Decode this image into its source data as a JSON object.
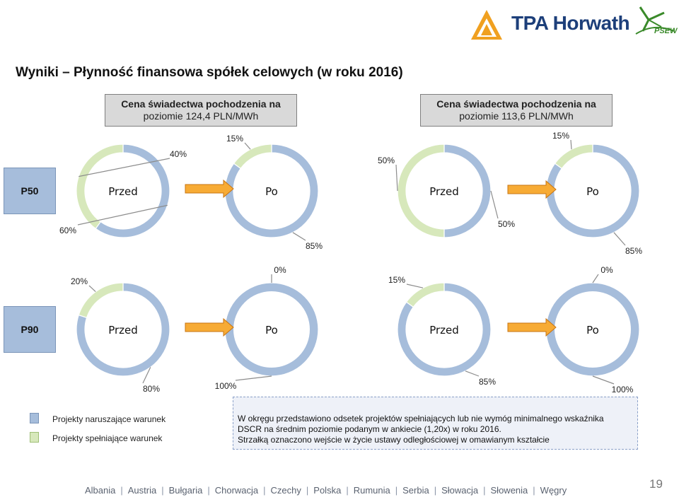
{
  "brand": {
    "name": "TPA Horwath",
    "partner": "PSEW",
    "accent": "#1d3f7a",
    "logo_orange": "#f0a020",
    "partner_green": "#3a8a2a"
  },
  "title": "Wyniki – Płynność finansowa spółek celowych (w roku 2016)",
  "scenarios": [
    {
      "line1": "Cena świadectwa pochodzenia na",
      "line2": "poziomie 124,4 PLN/MWh"
    },
    {
      "line1": "Cena świadectwa pochodzenia na",
      "line2": "poziomie 113,6 PLN/MWh"
    }
  ],
  "row_labels": [
    "P50",
    "P90"
  ],
  "colors": {
    "violating": "#a6bddb",
    "meeting": "#d7e8bb",
    "violating_border": "#7b95b8",
    "meeting_border": "#9fbf76"
  },
  "chart_data": [
    {
      "type": "pie",
      "variant": "donut",
      "label": "Przed",
      "row": "P50",
      "scenario": "124,4 PLN/MWh",
      "slices": [
        {
          "name": "Projekty spełniające warunek",
          "value": 40,
          "label": "40%"
        },
        {
          "name": "Projekty naruszające warunek",
          "value": 60,
          "label": "60%"
        }
      ]
    },
    {
      "type": "pie",
      "variant": "donut",
      "label": "Po",
      "row": "P50",
      "scenario": "124,4 PLN/MWh",
      "slices": [
        {
          "name": "Projekty spełniające warunek",
          "value": 15,
          "label": "15%"
        },
        {
          "name": "Projekty naruszające warunek",
          "value": 85,
          "label": "85%"
        }
      ]
    },
    {
      "type": "pie",
      "variant": "donut",
      "label": "Przed",
      "row": "P50",
      "scenario": "113,6 PLN/MWh",
      "slices": [
        {
          "name": "Projekty spełniające warunek",
          "value": 50,
          "label": "50%"
        },
        {
          "name": "Projekty naruszające warunek",
          "value": 50,
          "label": "50%"
        }
      ]
    },
    {
      "type": "pie",
      "variant": "donut",
      "label": "Po",
      "row": "P50",
      "scenario": "113,6 PLN/MWh",
      "slices": [
        {
          "name": "Projekty spełniające warunek",
          "value": 15,
          "label": "15%"
        },
        {
          "name": "Projekty naruszające warunek",
          "value": 85,
          "label": "85%"
        }
      ]
    },
    {
      "type": "pie",
      "variant": "donut",
      "label": "Przed",
      "row": "P90",
      "scenario": "124,4 PLN/MWh",
      "slices": [
        {
          "name": "Projekty spełniające warunek",
          "value": 20,
          "label": "20%"
        },
        {
          "name": "Projekty naruszające warunek",
          "value": 80,
          "label": "80%"
        }
      ]
    },
    {
      "type": "pie",
      "variant": "donut",
      "label": "Po",
      "row": "P90",
      "scenario": "124,4 PLN/MWh",
      "slices": [
        {
          "name": "Projekty spełniające warunek",
          "value": 0,
          "label": "0%"
        },
        {
          "name": "Projekty naruszające warunek",
          "value": 100,
          "label": "100%"
        }
      ]
    },
    {
      "type": "pie",
      "variant": "donut",
      "label": "Przed",
      "row": "P90",
      "scenario": "113,6 PLN/MWh",
      "slices": [
        {
          "name": "Projekty spełniające warunek",
          "value": 15,
          "label": "15%"
        },
        {
          "name": "Projekty naruszające warunek",
          "value": 85,
          "label": "85%"
        }
      ]
    },
    {
      "type": "pie",
      "variant": "donut",
      "label": "Po",
      "row": "P90",
      "scenario": "113,6 PLN/MWh",
      "slices": [
        {
          "name": "Projekty spełniające warunek",
          "value": 0,
          "label": "0%"
        },
        {
          "name": "Projekty naruszające warunek",
          "value": 100,
          "label": "100%"
        }
      ]
    }
  ],
  "legend": [
    {
      "label": "Projekty naruszające warunek",
      "color": "#a6bddb"
    },
    {
      "label": "Projekty spełniające warunek",
      "color": "#d7e8bb"
    }
  ],
  "note": {
    "line1": "W okręgu przedstawiono odsetek projektów spełniających lub nie wymóg minimalnego wskaźnika",
    "line2": "DSCR na średnim poziomie podanym w ankiecie (1,20x) w roku 2016.",
    "line3": "Strzałką oznaczono wejście w życie ustawy odległościowej w omawianym kształcie"
  },
  "footer": {
    "countries": [
      "Albania",
      "Austria",
      "Bułgaria",
      "Chorwacja",
      "Czechy",
      "Polska",
      "Rumunia",
      "Serbia",
      "Słowacja",
      "Słowenia",
      "Węgry"
    ],
    "page_number": "19"
  }
}
